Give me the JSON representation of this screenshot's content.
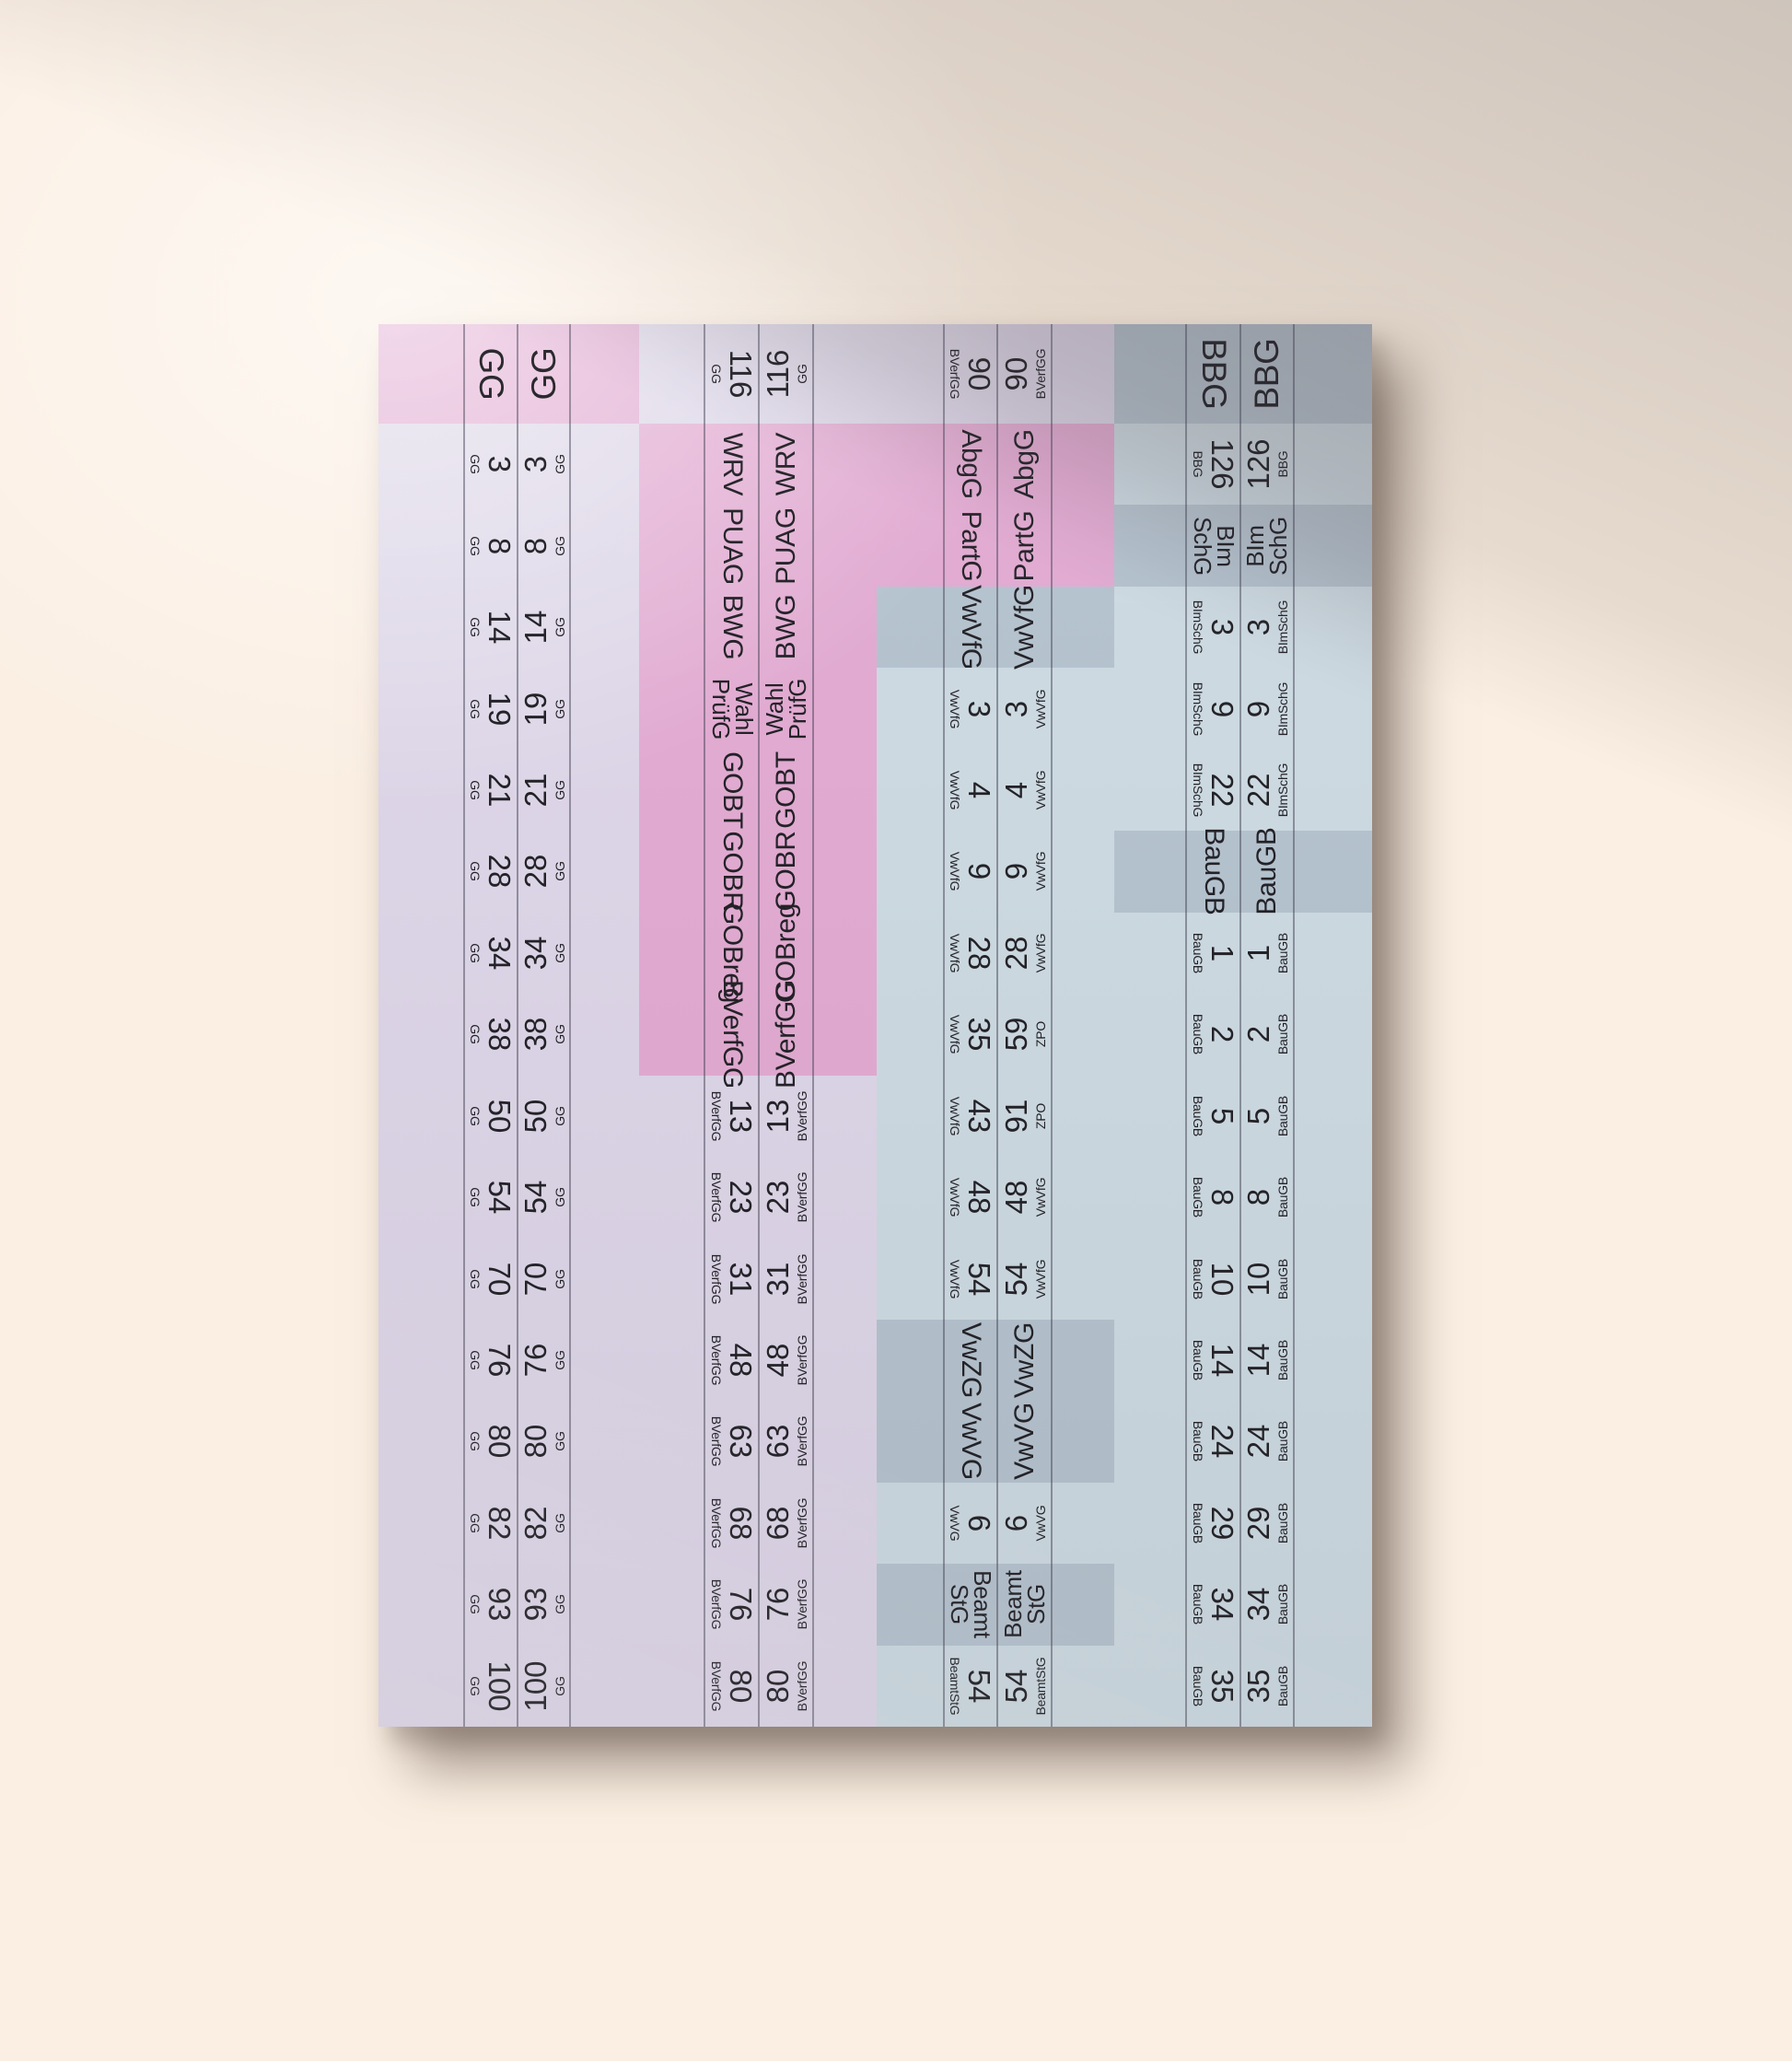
{
  "palette": {
    "pink": "#e1aad1",
    "lavender": "#dcd5e7",
    "slate": "#b4c2ce",
    "lightblue": "#ccd9e1",
    "text": "#232227",
    "cut_line": "#6e6e80",
    "desk_background": "#fbefe3",
    "shadow": "#5c4c42"
  },
  "poster": {
    "description_label": "",
    "zones": [
      {
        "id": "gg",
        "cells": [
          {
            "text": "GG",
            "color": "pink"
          },
          {
            "text": "3",
            "sub": "GG",
            "color": "lavender"
          },
          {
            "text": "8",
            "sub": "GG",
            "color": "lavender"
          },
          {
            "text": "14",
            "sub": "GG",
            "color": "lavender"
          },
          {
            "text": "19",
            "sub": "GG",
            "color": "lavender"
          },
          {
            "text": "21",
            "sub": "GG",
            "color": "lavender"
          },
          {
            "text": "28",
            "sub": "GG",
            "color": "lavender"
          },
          {
            "text": "34",
            "sub": "GG",
            "color": "lavender"
          },
          {
            "text": "38",
            "sub": "GG",
            "color": "lavender"
          },
          {
            "text": "50",
            "sub": "GG",
            "color": "lavender"
          },
          {
            "text": "54",
            "sub": "GG",
            "color": "lavender"
          },
          {
            "text": "70",
            "sub": "GG",
            "color": "lavender"
          },
          {
            "text": "76",
            "sub": "GG",
            "color": "lavender"
          },
          {
            "text": "80",
            "sub": "GG",
            "color": "lavender"
          },
          {
            "text": "82",
            "sub": "GG",
            "color": "lavender"
          },
          {
            "text": "93",
            "sub": "GG",
            "color": "lavender"
          },
          {
            "text": "100",
            "sub": "GG",
            "color": "lavender"
          }
        ]
      },
      {
        "id": "verfassungsrecht",
        "cells": [
          {
            "text": "116",
            "sub": "GG",
            "color": "lavender"
          },
          {
            "text": "WRV",
            "color": "pink"
          },
          {
            "text": "PUAG",
            "color": "pink"
          },
          {
            "text": "BWG",
            "color": "pink"
          },
          {
            "text": "Wahl\nPrüfG",
            "color": "pink"
          },
          {
            "text": "GOBT",
            "color": "pink"
          },
          {
            "text": "GOBR",
            "color": "pink"
          },
          {
            "text": "GOBreg",
            "color": "pink"
          },
          {
            "text": "BVerfGG",
            "color": "pink"
          },
          {
            "text": "13",
            "sub": "BVerfGG",
            "color": "lavender"
          },
          {
            "text": "23",
            "sub": "BVerfGG",
            "color": "lavender"
          },
          {
            "text": "31",
            "sub": "BVerfGG",
            "color": "lavender"
          },
          {
            "text": "48",
            "sub": "BVerfGG",
            "color": "lavender"
          },
          {
            "text": "63",
            "sub": "BVerfGG",
            "color": "lavender"
          },
          {
            "text": "68",
            "sub": "BVerfGG",
            "color": "lavender"
          },
          {
            "text": "76",
            "sub": "BVerfGG",
            "color": "lavender"
          },
          {
            "text": "80",
            "sub": "BVerfGG",
            "color": "lavender"
          }
        ]
      },
      {
        "id": "verwaltungsrecht",
        "cells": [
          {
            "text": "90",
            "sub": "BVerfGG",
            "color": "lavender"
          },
          {
            "text": "AbgG",
            "color": "pink"
          },
          {
            "text": "PartG",
            "color": "pink"
          },
          {
            "text": "VwVfG",
            "color": "slate"
          },
          {
            "text": "3",
            "sub": "VwVfG",
            "color": "lightblue"
          },
          {
            "text": "4",
            "sub": "VwVfG",
            "color": "lightblue"
          },
          {
            "text": "9",
            "sub": "VwVfG",
            "color": "lightblue"
          },
          {
            "text": "28",
            "sub": "VwVfG",
            "color": "lightblue"
          },
          {
            "text": "35",
            "sub": "VwVfG",
            "color": "lightblue",
            "right": {
              "text": "59",
              "sub": "ZPO"
            }
          },
          {
            "text": "43",
            "sub": "VwVfG",
            "color": "lightblue",
            "right": {
              "text": "91",
              "sub": "ZPO"
            }
          },
          {
            "text": "48",
            "sub": "VwVfG",
            "color": "lightblue"
          },
          {
            "text": "54",
            "sub": "VwVfG",
            "color": "lightblue"
          },
          {
            "text": "VwZG",
            "color": "slate"
          },
          {
            "text": "VwVG",
            "color": "slate"
          },
          {
            "text": "6",
            "sub": "VwVG",
            "color": "lightblue"
          },
          {
            "text": "Beamt\nStG",
            "color": "slate"
          },
          {
            "text": "54",
            "sub": "BeamtStG",
            "color": "lightblue"
          }
        ]
      },
      {
        "id": "besonderes-verwaltungsrecht",
        "cells": [
          {
            "text": "BBG",
            "color": "slate"
          },
          {
            "text": "126",
            "sub": "BBG",
            "color": "lightblue"
          },
          {
            "text": "BIm\nSchG",
            "color": "slate"
          },
          {
            "text": "3",
            "sub": "BImSchG",
            "color": "lightblue"
          },
          {
            "text": "9",
            "sub": "BImSchG",
            "color": "lightblue"
          },
          {
            "text": "22",
            "sub": "BImSchG",
            "color": "lightblue"
          },
          {
            "text": "BauGB",
            "color": "slate"
          },
          {
            "text": "1",
            "sub": "BauGB",
            "color": "lightblue"
          },
          {
            "text": "2",
            "sub": "BauGB",
            "color": "lightblue"
          },
          {
            "text": "5",
            "sub": "BauGB",
            "color": "lightblue"
          },
          {
            "text": "8",
            "sub": "BauGB",
            "color": "lightblue"
          },
          {
            "text": "10",
            "sub": "BauGB",
            "color": "lightblue"
          },
          {
            "text": "14",
            "sub": "BauGB",
            "color": "lightblue"
          },
          {
            "text": "24",
            "sub": "BauGB",
            "color": "lightblue"
          },
          {
            "text": "29",
            "sub": "BauGB",
            "color": "lightblue"
          },
          {
            "text": "34",
            "sub": "BauGB",
            "color": "lightblue"
          },
          {
            "text": "35",
            "sub": "BauGB",
            "color": "lightblue"
          }
        ]
      }
    ]
  }
}
